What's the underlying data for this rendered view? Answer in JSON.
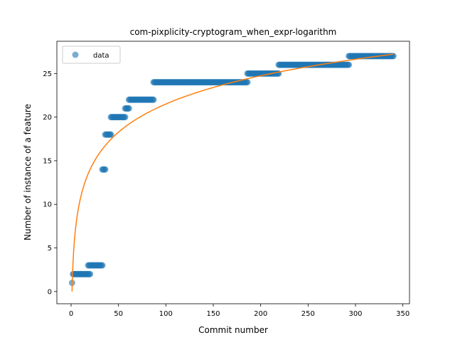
{
  "chart_data": {
    "type": "scatter",
    "title": "com-pixplicity-cryptogram_when_expr-logarithm",
    "xlabel": "Commit number",
    "ylabel": "Number of instance of a feature",
    "xlim": [
      -15,
      357
    ],
    "ylim": [
      -1.4,
      28.7
    ],
    "xticks": [
      0,
      50,
      100,
      150,
      200,
      250,
      300,
      350
    ],
    "yticks": [
      0,
      5,
      10,
      15,
      20,
      25
    ],
    "grid": false,
    "legend": {
      "entries": [
        "data"
      ],
      "placement": "upper-left"
    },
    "series": [
      {
        "name": "data",
        "kind": "scatter",
        "color": "#1f77b4",
        "alpha": 0.6,
        "runs": [
          {
            "x_start": 1,
            "x_end": 1,
            "y": 1
          },
          {
            "x_start": 2,
            "x_end": 20,
            "y": 2
          },
          {
            "x_start": 18,
            "x_end": 33,
            "y": 3
          },
          {
            "x_start": 33,
            "x_end": 36,
            "y": 14
          },
          {
            "x_start": 36,
            "x_end": 42,
            "y": 18
          },
          {
            "x_start": 42,
            "x_end": 57,
            "y": 20
          },
          {
            "x_start": 57,
            "x_end": 61,
            "y": 21
          },
          {
            "x_start": 61,
            "x_end": 87,
            "y": 22
          },
          {
            "x_start": 87,
            "x_end": 186,
            "y": 24
          },
          {
            "x_start": 186,
            "x_end": 219,
            "y": 25
          },
          {
            "x_start": 219,
            "x_end": 293,
            "y": 26
          },
          {
            "x_start": 293,
            "x_end": 340,
            "y": 27
          }
        ]
      },
      {
        "name": "",
        "kind": "line",
        "color": "#ff7f0e",
        "fit": {
          "form": "logarithm",
          "a": 4.67,
          "b": 0.0,
          "x_range": [
            1,
            340
          ]
        }
      }
    ]
  }
}
